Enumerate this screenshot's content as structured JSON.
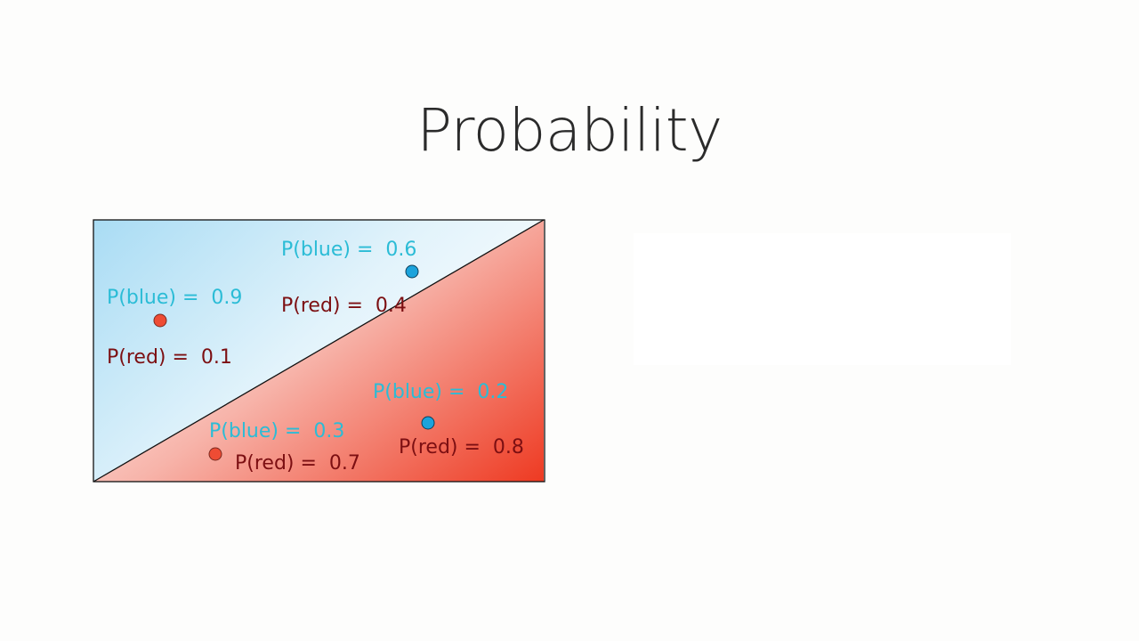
{
  "slide": {
    "title": "Probability"
  },
  "diagram": {
    "colors": {
      "blue_region": "#bfe5f7",
      "red_region": "#ef4530",
      "blue_label": "#2bbcd6",
      "red_label": "#7c0f12",
      "blue_point": "#1ba3dc",
      "red_point": "#ee4c34"
    },
    "points": [
      {
        "color": "red",
        "blue_label": "P(blue) =  0.9",
        "red_label": "P(red) =  0.1"
      },
      {
        "color": "blue",
        "blue_label": "P(blue) =  0.6",
        "red_label": "P(red) =  0.4"
      },
      {
        "color": "blue",
        "blue_label": "P(blue) =  0.2",
        "red_label": "P(red) =  0.8"
      },
      {
        "color": "red",
        "blue_label": "P(blue) =  0.3",
        "red_label": "P(red) =  0.7"
      }
    ]
  }
}
